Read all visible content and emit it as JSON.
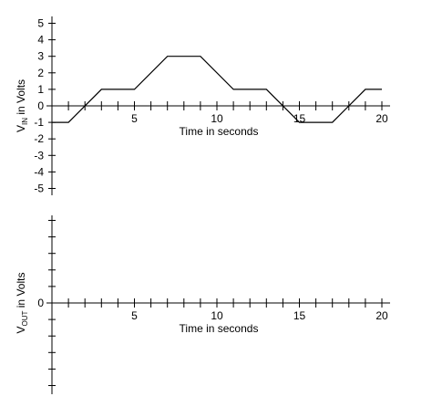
{
  "chart_data": [
    {
      "type": "line",
      "title": "",
      "ylabel_main": "V",
      "ylabel_sub": "IN",
      "ylabel_rest": " in Volts",
      "xlabel": "Time in seconds",
      "xlim": [
        0,
        20
      ],
      "ylim": [
        -5,
        5
      ],
      "x_ticks_labeled": [
        5,
        10,
        15,
        20
      ],
      "y_ticks_labeled": [
        -5,
        -4,
        -3,
        -2,
        -1,
        0,
        1,
        2,
        3,
        4,
        5
      ],
      "grid": false,
      "series": [
        {
          "x": [
            0,
            1,
            3,
            5,
            7,
            9,
            11,
            13,
            15,
            17,
            19,
            20
          ],
          "y": [
            -1,
            -1,
            1,
            1,
            3,
            3,
            1,
            1,
            -1,
            -1,
            1,
            1
          ]
        }
      ]
    },
    {
      "type": "line",
      "title": "",
      "ylabel_main": "V",
      "ylabel_sub": "OUT",
      "ylabel_rest": " in Volts",
      "xlabel": "Time in seconds",
      "xlim": [
        0,
        20
      ],
      "ylim": [
        -5,
        5
      ],
      "x_ticks_labeled": [
        5,
        10,
        15,
        20
      ],
      "y_ticks_labeled": [
        0
      ],
      "grid": false,
      "series": []
    }
  ]
}
